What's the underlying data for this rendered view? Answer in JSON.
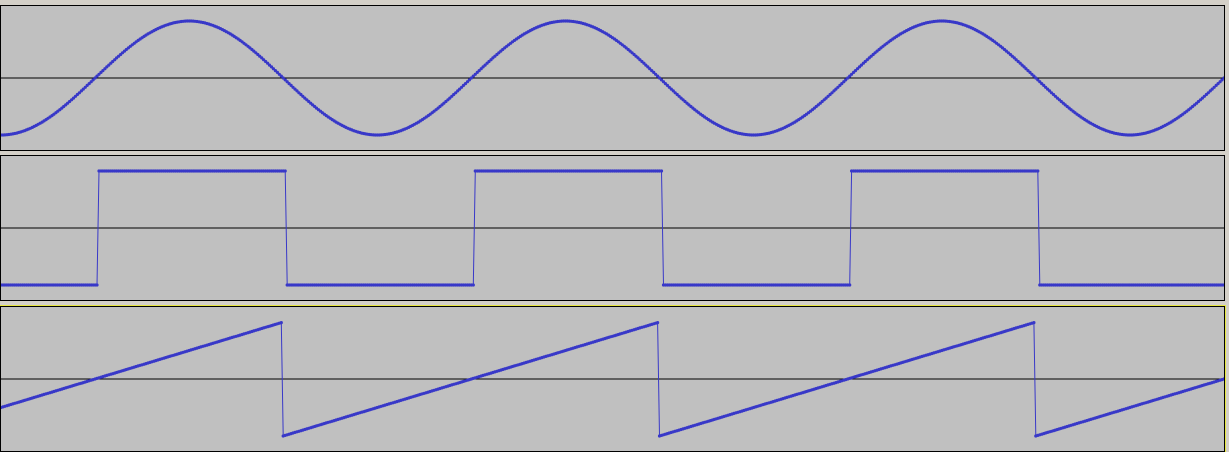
{
  "colors": {
    "waveform": "#3838c8",
    "track_background": "#c0c0c0",
    "centerline": "#000000",
    "border": "#000000",
    "selection": "#e8e840"
  },
  "tracks": [
    {
      "id": "sine",
      "waveform": "sine",
      "samples_per_cycle": 192,
      "cycles_visible": 3.25,
      "phase": 0.0,
      "selected": false
    },
    {
      "id": "square",
      "waveform": "square",
      "samples_per_cycle": 192,
      "cycles_visible": 3.25,
      "phase": 0.0,
      "selected": false
    },
    {
      "id": "saw",
      "waveform": "sawtooth",
      "samples_per_cycle": 192,
      "cycles_visible": 3.25,
      "phase": 0.25,
      "selected": true
    }
  ]
}
